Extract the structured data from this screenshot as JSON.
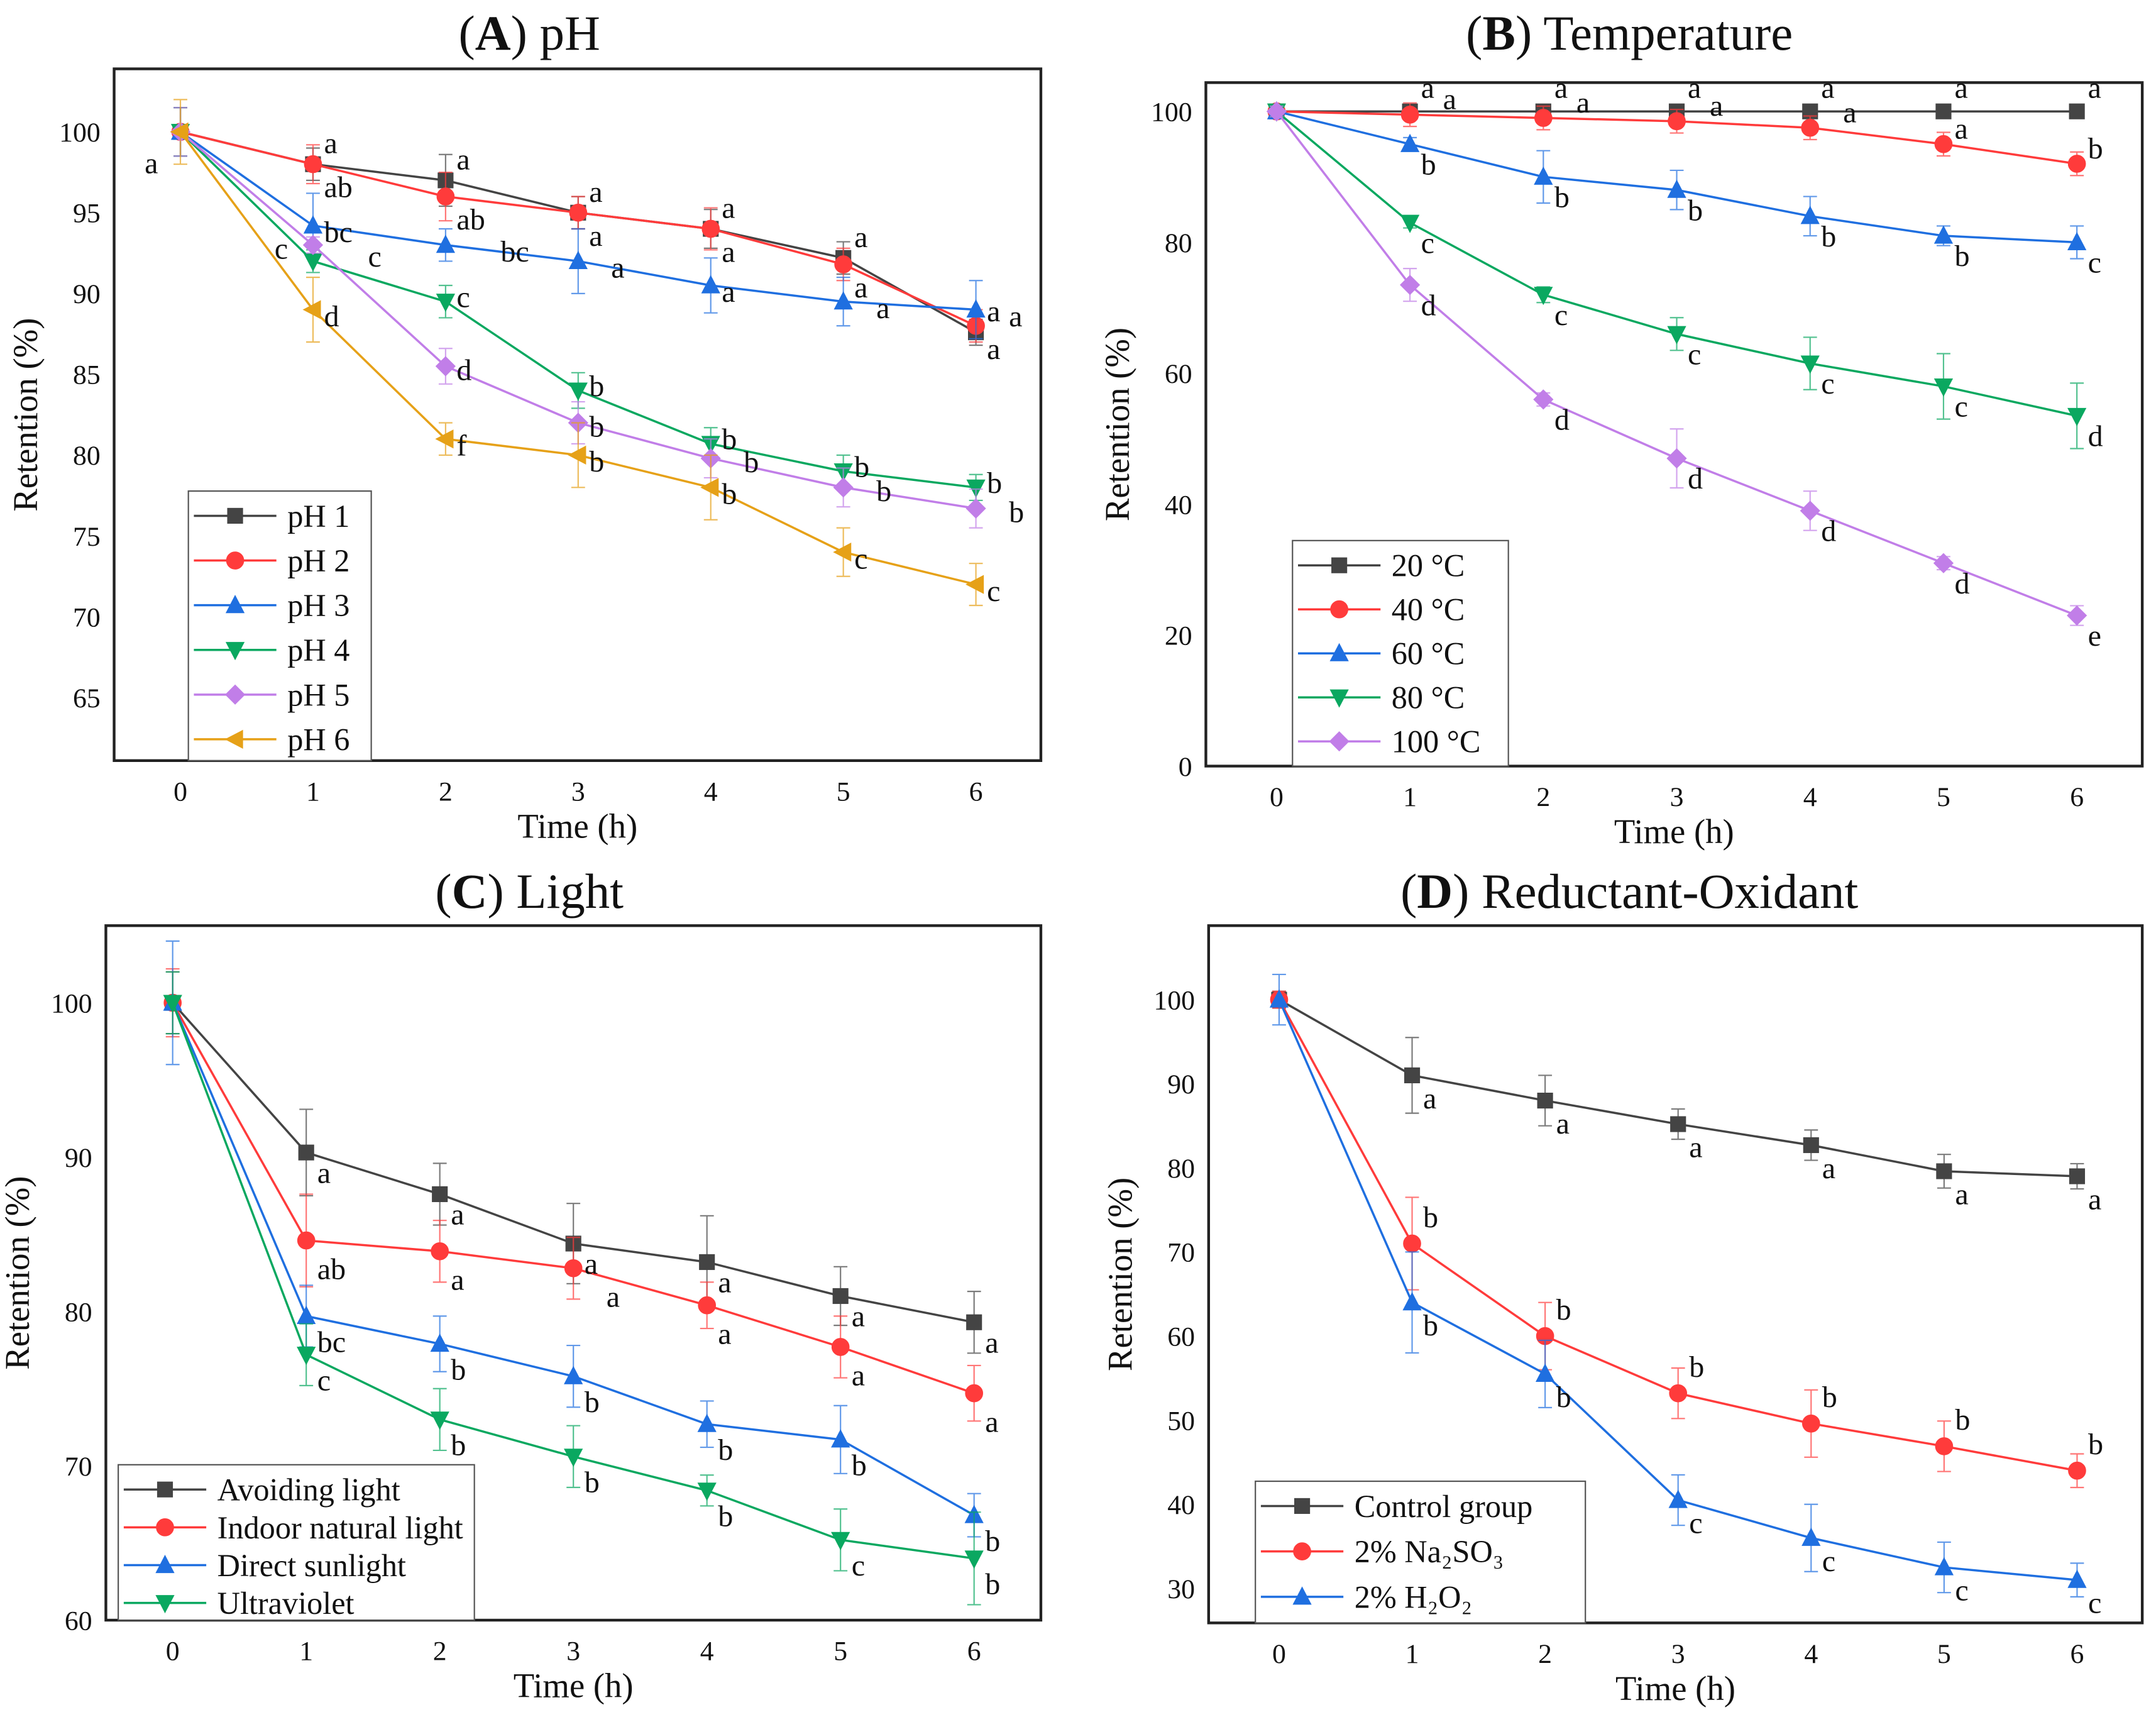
{
  "chart_data": [
    {
      "type": "line",
      "panel": "A",
      "title_letter": "A",
      "title_text": "pH",
      "xlabel": "Time (h)",
      "ylabel": "Retention (%)",
      "x": [
        0,
        1,
        2,
        3,
        4,
        5,
        6
      ],
      "xticks": [
        "0",
        "1",
        "2",
        "3",
        "4",
        "5",
        "6"
      ],
      "yticks": [
        65,
        70,
        75,
        80,
        85,
        90,
        95,
        100
      ],
      "ylim": [
        61.1,
        103.9
      ],
      "xlim": [
        -0.5,
        6.49
      ],
      "legend_position": "bottom-left",
      "grid": false,
      "zero_label": "a",
      "series": [
        {
          "name": "pH 1",
          "color": "#444444",
          "marker": "square",
          "values": [
            100,
            98,
            97,
            95,
            94,
            92.2,
            87.6
          ],
          "err": [
            1.5,
            1,
            1.6,
            1,
            1.2,
            1,
            0.8
          ],
          "letters": [
            "",
            "a",
            "a",
            "a",
            "a",
            "a",
            "a"
          ]
        },
        {
          "name": "pH 2",
          "color": "#ff3b3b",
          "marker": "circle",
          "values": [
            100,
            98,
            96,
            95,
            94,
            91.8,
            88
          ],
          "err": [
            1.5,
            1.2,
            1.5,
            1,
            1.3,
            1,
            1
          ],
          "letters": [
            "",
            "ab",
            "ab",
            "a",
            "a",
            "a",
            "a"
          ]
        },
        {
          "name": "pH 3",
          "color": "#1f6fe0",
          "marker": "triangle-up",
          "values": [
            100,
            94.2,
            93,
            92,
            90.5,
            89.5,
            89
          ],
          "err": [
            1.5,
            2,
            1,
            2,
            1.7,
            1.5,
            1.8
          ],
          "letters": [
            "",
            "bc",
            "bc",
            "a",
            "a",
            "a",
            "a"
          ]
        },
        {
          "name": "pH 4",
          "color": "#0aa860",
          "marker": "triangle-down",
          "values": [
            100,
            92,
            89.5,
            84,
            80.7,
            79,
            78
          ],
          "err": [
            1.5,
            0.7,
            1,
            1.1,
            1,
            1,
            0.8
          ],
          "letters": [
            "",
            "c",
            "c",
            "b",
            "b",
            "b",
            "b"
          ]
        },
        {
          "name": "pH 5",
          "color": "#c17ee8",
          "marker": "diamond",
          "values": [
            100,
            93,
            85.5,
            82,
            79.8,
            78,
            76.7
          ],
          "err": [
            1.5,
            0.5,
            1.1,
            1.3,
            1.2,
            1.2,
            1.2
          ],
          "letters": [
            "",
            "c",
            "d",
            "b",
            "b",
            "b",
            "b"
          ]
        },
        {
          "name": "pH 6",
          "color": "#e6a118",
          "marker": "triangle-left",
          "values": [
            100,
            89,
            81,
            80,
            78,
            74,
            72
          ],
          "err": [
            2,
            2,
            1,
            2,
            2,
            1.5,
            1.3
          ],
          "letters": [
            "",
            "d",
            "f",
            "b",
            "b",
            "c",
            "c"
          ]
        }
      ]
    },
    {
      "type": "line",
      "panel": "B",
      "title_letter": "B",
      "title_text": "Temperature",
      "xlabel": "Time (h)",
      "ylabel": "Retention (%)",
      "x": [
        0,
        1,
        2,
        3,
        4,
        5,
        6
      ],
      "xticks": [
        "0",
        "1",
        "2",
        "3",
        "4",
        "5",
        "6"
      ],
      "yticks": [
        0,
        20,
        40,
        60,
        80,
        100
      ],
      "ylim": [
        0,
        104.4
      ],
      "xlim": [
        -0.53,
        6.49
      ],
      "legend_position": "bottom-left",
      "grid": false,
      "series": [
        {
          "name": "20 °C",
          "color": "#444444",
          "marker": "square",
          "values": [
            100,
            100,
            100,
            100,
            100,
            100,
            100
          ],
          "err": [
            0.8,
            0.5,
            0.5,
            0.5,
            0.5,
            0.5,
            0.5
          ],
          "letters": [
            "",
            "a",
            "a",
            "a",
            "a",
            "a",
            "a"
          ]
        },
        {
          "name": "40 °C",
          "color": "#ff3b3b",
          "marker": "circle",
          "values": [
            100,
            99.5,
            99,
            98.5,
            97.5,
            95,
            92
          ],
          "err": [
            0.8,
            1.8,
            1.8,
            1.8,
            1.8,
            1.8,
            1.8
          ],
          "letters": [
            "",
            "a",
            "a",
            "a",
            "a",
            "a",
            "b"
          ]
        },
        {
          "name": "60 °C",
          "color": "#1f6fe0",
          "marker": "triangle-up",
          "values": [
            100,
            95,
            90,
            88,
            84,
            81,
            80
          ],
          "err": [
            0.8,
            1,
            4,
            3,
            3,
            1.5,
            2.5
          ],
          "letters": [
            "",
            "b",
            "b",
            "b",
            "b",
            "b",
            "c"
          ]
        },
        {
          "name": "80 °C",
          "color": "#0aa860",
          "marker": "triangle-down",
          "values": [
            100,
            83,
            72,
            66,
            61.5,
            58,
            53.5
          ],
          "err": [
            0.8,
            0.8,
            1.2,
            2.5,
            4,
            5,
            5
          ],
          "letters": [
            "",
            "c",
            "c",
            "c",
            "c",
            "c",
            "d"
          ]
        },
        {
          "name": "100 °C",
          "color": "#c17ee8",
          "marker": "diamond",
          "values": [
            100,
            73.5,
            56,
            47,
            39,
            31,
            23
          ],
          "err": [
            0.8,
            2.5,
            1,
            4.5,
            3,
            1,
            1.5
          ],
          "letters": [
            "",
            "d",
            "d",
            "d",
            "d",
            "d",
            "e"
          ]
        }
      ]
    },
    {
      "type": "line",
      "panel": "C",
      "title_letter": "C",
      "title_text": "Light",
      "xlabel": "Time (h)",
      "ylabel": "Retention (%)",
      "x": [
        0,
        1,
        2,
        3,
        4,
        5,
        6
      ],
      "xticks": [
        "0",
        "1",
        "2",
        "3",
        "4",
        "5",
        "6"
      ],
      "yticks": [
        60,
        70,
        80,
        90,
        100
      ],
      "ylim": [
        60,
        105
      ],
      "xlim": [
        -0.5,
        6.5
      ],
      "legend_position": "bottom-left",
      "grid": false,
      "series": [
        {
          "name": "Avoiding light",
          "color": "#444444",
          "marker": "square",
          "values": [
            100,
            90.3,
            87.6,
            84.4,
            83.2,
            81,
            79.3
          ],
          "err": [
            2,
            2.8,
            2,
            2.6,
            3,
            1.9,
            2
          ],
          "letters": [
            "",
            "a",
            "a",
            "a",
            "a",
            "a",
            "a"
          ]
        },
        {
          "name": "Indoor natural light",
          "color": "#ff3b3b",
          "marker": "circle",
          "values": [
            100,
            84.6,
            83.9,
            82.8,
            80.4,
            77.7,
            74.7
          ],
          "err": [
            2.2,
            3,
            2,
            2,
            1.5,
            2,
            1.8
          ],
          "letters": [
            "",
            "ab",
            "a",
            "a",
            "a",
            "a",
            "a"
          ]
        },
        {
          "name": "Direct sunlight",
          "color": "#1f6fe0",
          "marker": "triangle-up",
          "values": [
            100,
            79.7,
            77.9,
            75.8,
            72.7,
            71.7,
            66.8
          ],
          "err": [
            4,
            2,
            1.8,
            2,
            1.5,
            2.2,
            1.4
          ],
          "letters": [
            "",
            "bc",
            "b",
            "b",
            "b",
            "b",
            "b"
          ]
        },
        {
          "name": "Ultraviolet",
          "color": "#0aa860",
          "marker": "triangle-down",
          "values": [
            100,
            77.2,
            73,
            70.6,
            68.4,
            65.2,
            64
          ],
          "err": [
            2,
            2,
            2,
            2,
            1,
            2,
            3
          ],
          "letters": [
            "",
            "c",
            "b",
            "b",
            "b",
            "c",
            "b"
          ]
        }
      ]
    },
    {
      "type": "line",
      "panel": "D",
      "title_letter": "D",
      "title_text": "Reductant-Oxidant",
      "xlabel": "Time (h)",
      "ylabel": "Retention (%)",
      "x": [
        0,
        1,
        2,
        3,
        4,
        5,
        6
      ],
      "xticks": [
        "0",
        "1",
        "2",
        "3",
        "4",
        "5",
        "6"
      ],
      "yticks": [
        30,
        40,
        50,
        60,
        70,
        80,
        90,
        100
      ],
      "ylim": [
        25.9,
        108.8
      ],
      "xlim": [
        -0.53,
        6.49
      ],
      "legend_position": "bottom-left",
      "grid": false,
      "series": [
        {
          "name": "Control group",
          "color": "#444444",
          "marker": "square",
          "values": [
            100,
            91,
            88,
            85.2,
            82.7,
            79.6,
            79
          ],
          "err": [
            1,
            4.5,
            3,
            1.8,
            1.8,
            2,
            1.5
          ],
          "letters": [
            "",
            "a",
            "a",
            "a",
            "a",
            "a",
            "a"
          ]
        },
        {
          "name": "2% Na₂SO₃",
          "color": "#ff3b3b",
          "marker": "circle",
          "values": [
            100,
            71,
            60,
            53.2,
            49.6,
            46.9,
            44
          ],
          "err": [
            1,
            5.5,
            4,
            3,
            4,
            3,
            2
          ],
          "letters": [
            "",
            "b",
            "b",
            "b",
            "b",
            "b",
            "b"
          ]
        },
        {
          "name": "2% H₂O₂",
          "color": "#1f6fe0",
          "marker": "triangle-up",
          "values": [
            100,
            64,
            55.5,
            40.5,
            36,
            32.5,
            31
          ],
          "err": [
            3,
            6,
            4,
            3,
            4,
            3,
            2
          ],
          "letters": [
            "",
            "b",
            "b",
            "c",
            "c",
            "c",
            "c"
          ]
        }
      ]
    }
  ]
}
